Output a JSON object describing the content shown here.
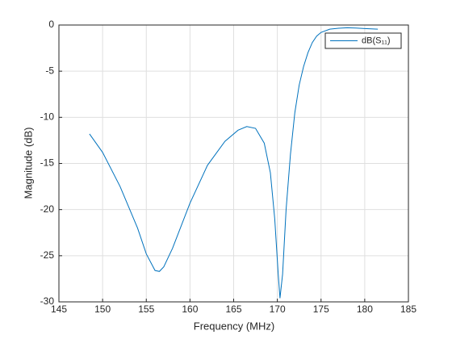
{
  "chart_data": {
    "type": "line",
    "xlabel": "Frequency (MHz)",
    "ylabel": "Magnitude (dB)",
    "x": [
      148.5,
      150,
      152,
      154,
      155,
      156,
      156.5,
      157,
      158,
      160,
      162,
      164,
      165.5,
      166.5,
      167.5,
      168.5,
      169.2,
      169.7,
      170.1,
      170.3,
      170.6,
      171,
      171.5,
      172,
      172.5,
      173,
      173.5,
      174,
      174.5,
      175,
      176,
      177,
      178,
      179,
      180,
      181.5
    ],
    "series": [
      {
        "name": "dB(S₁₁)",
        "color": "#0072bd",
        "values": [
          -11.8,
          -13.8,
          -17.5,
          -22,
          -24.8,
          -26.6,
          -26.7,
          -26.2,
          -24.2,
          -19.3,
          -15.2,
          -12.6,
          -11.4,
          -11.0,
          -11.2,
          -12.8,
          -16,
          -21,
          -27,
          -29.6,
          -27,
          -20,
          -14,
          -9.5,
          -6.5,
          -4.5,
          -3.0,
          -1.9,
          -1.2,
          -0.8,
          -0.45,
          -0.35,
          -0.3,
          -0.33,
          -0.38,
          -0.45
        ]
      }
    ],
    "xlim": [
      145,
      185
    ],
    "ylim": [
      -30,
      0
    ],
    "xticks": [
      145,
      150,
      155,
      160,
      165,
      170,
      175,
      180,
      185
    ],
    "yticks": [
      -30,
      -25,
      -20,
      -15,
      -10,
      -5,
      0
    ],
    "grid": true,
    "legend": "upper-right"
  }
}
